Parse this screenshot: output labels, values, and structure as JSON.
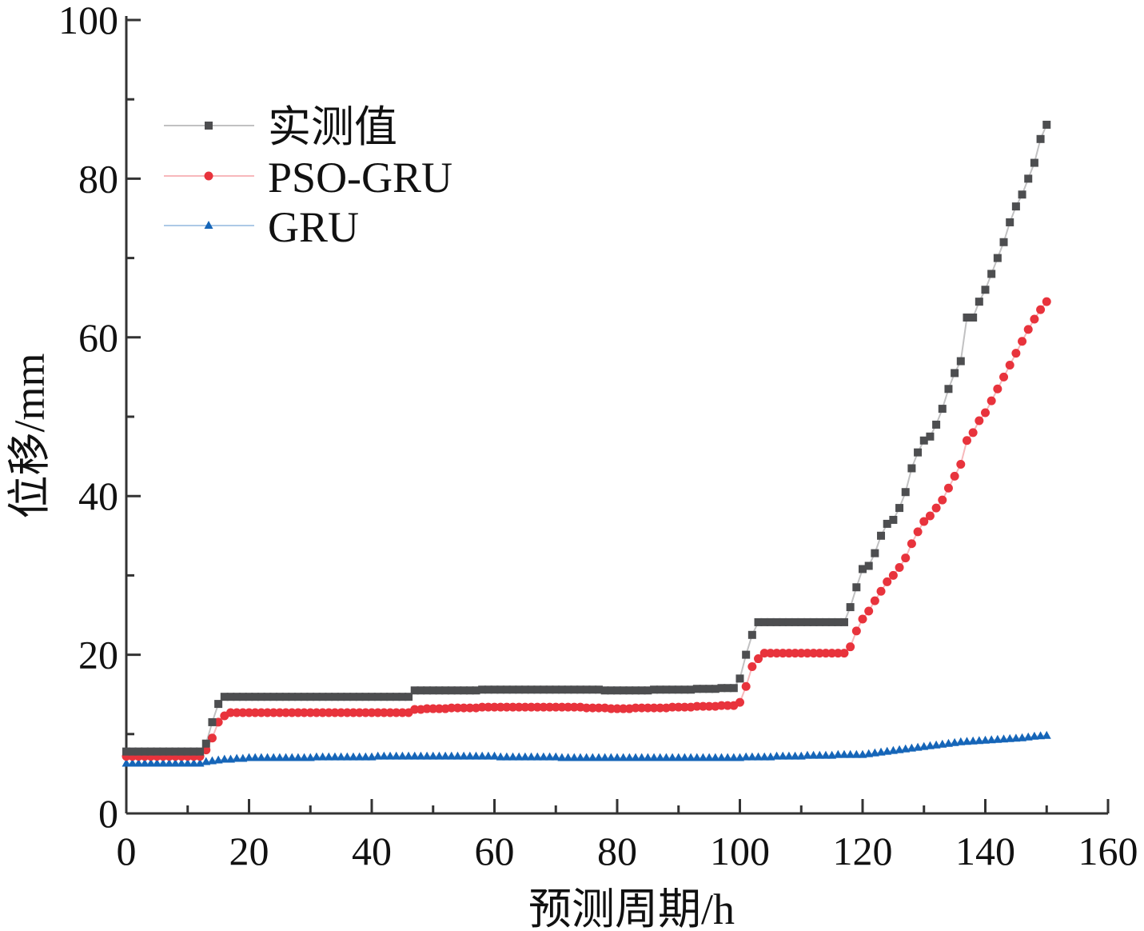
{
  "chart_data": {
    "type": "line",
    "title": "",
    "xlabel": "预测周期/h",
    "ylabel": "位移/mm",
    "xlim": [
      0,
      160
    ],
    "ylim": [
      0,
      100
    ],
    "xticks": [
      "0",
      "20",
      "40",
      "60",
      "80",
      "100",
      "120",
      "140",
      "160"
    ],
    "yticks": [
      "0",
      "20",
      "40",
      "60",
      "80",
      "100"
    ],
    "legend_position": "top-left",
    "x_start": 0,
    "x_step": 1,
    "series": [
      {
        "name": "实测值",
        "color": "#4d4e50",
        "marker": "square",
        "values": [
          7.8,
          7.8,
          7.8,
          7.8,
          7.8,
          7.8,
          7.8,
          7.8,
          7.8,
          7.8,
          7.8,
          7.8,
          7.8,
          8.8,
          11.5,
          13.8,
          14.7,
          14.7,
          14.7,
          14.7,
          14.7,
          14.7,
          14.7,
          14.7,
          14.7,
          14.7,
          14.7,
          14.7,
          14.7,
          14.7,
          14.7,
          14.7,
          14.7,
          14.7,
          14.7,
          14.7,
          14.7,
          14.7,
          14.7,
          14.7,
          14.7,
          14.7,
          14.7,
          14.7,
          14.7,
          14.7,
          14.7,
          15.5,
          15.5,
          15.5,
          15.5,
          15.5,
          15.5,
          15.5,
          15.5,
          15.5,
          15.5,
          15.5,
          15.6,
          15.6,
          15.6,
          15.6,
          15.6,
          15.6,
          15.6,
          15.6,
          15.6,
          15.6,
          15.6,
          15.6,
          15.6,
          15.6,
          15.6,
          15.6,
          15.6,
          15.6,
          15.6,
          15.6,
          15.5,
          15.5,
          15.5,
          15.5,
          15.5,
          15.5,
          15.5,
          15.5,
          15.6,
          15.6,
          15.6,
          15.6,
          15.6,
          15.6,
          15.6,
          15.7,
          15.7,
          15.7,
          15.7,
          15.8,
          15.8,
          15.8,
          17,
          20,
          22.5,
          24.1,
          24.1,
          24.1,
          24.1,
          24.1,
          24.1,
          24.1,
          24.1,
          24.1,
          24.1,
          24.1,
          24.1,
          24.1,
          24.1,
          24.1,
          26,
          28.5,
          30.8,
          31.2,
          32.8,
          35,
          36.5,
          37,
          38.5,
          40.5,
          43.5,
          45.5,
          47,
          47.5,
          49,
          51,
          53.5,
          55.5,
          57,
          62.5,
          62.5,
          64.5,
          66,
          68,
          70,
          72,
          74.5,
          76.5,
          78,
          80,
          82,
          85,
          86.8
        ]
      },
      {
        "name": "PSO-GRU",
        "color": "#e8333c",
        "marker": "circle",
        "values": [
          7.2,
          7.2,
          7.2,
          7.2,
          7.2,
          7.2,
          7.2,
          7.2,
          7.2,
          7.2,
          7.2,
          7.2,
          7.2,
          8,
          9.5,
          11.5,
          12.3,
          12.7,
          12.7,
          12.7,
          12.7,
          12.7,
          12.7,
          12.7,
          12.7,
          12.7,
          12.7,
          12.7,
          12.7,
          12.7,
          12.7,
          12.7,
          12.7,
          12.7,
          12.7,
          12.7,
          12.7,
          12.7,
          12.7,
          12.7,
          12.7,
          12.7,
          12.7,
          12.7,
          12.7,
          12.7,
          12.7,
          13.1,
          13.1,
          13.2,
          13.2,
          13.2,
          13.2,
          13.3,
          13.3,
          13.3,
          13.3,
          13.3,
          13.4,
          13.4,
          13.4,
          13.4,
          13.4,
          13.4,
          13.4,
          13.4,
          13.4,
          13.4,
          13.4,
          13.4,
          13.4,
          13.4,
          13.4,
          13.4,
          13.4,
          13.3,
          13.3,
          13.3,
          13.3,
          13.2,
          13.2,
          13.2,
          13.2,
          13.3,
          13.3,
          13.3,
          13.3,
          13.3,
          13.3,
          13.4,
          13.4,
          13.4,
          13.4,
          13.5,
          13.5,
          13.5,
          13.5,
          13.6,
          13.6,
          13.6,
          14,
          16,
          18.5,
          19.5,
          20.2,
          20.2,
          20.2,
          20.2,
          20.2,
          20.2,
          20.2,
          20.2,
          20.2,
          20.2,
          20.2,
          20.2,
          20.2,
          20.2,
          21,
          23,
          24.5,
          25.5,
          26.8,
          28,
          29.2,
          30,
          31,
          32.2,
          34,
          35.5,
          36.8,
          37.5,
          38.5,
          39.5,
          41,
          42.5,
          44,
          47,
          48,
          49.5,
          50.5,
          52,
          53.5,
          55,
          56.5,
          58,
          59.5,
          61,
          62.3,
          63.5,
          64.5
        ]
      },
      {
        "name": "GRU",
        "color": "#1565b8",
        "marker": "triangle",
        "values": [
          6.3,
          6.3,
          6.3,
          6.3,
          6.3,
          6.3,
          6.3,
          6.3,
          6.3,
          6.3,
          6.3,
          6.3,
          6.3,
          6.5,
          6.6,
          6.7,
          6.8,
          6.8,
          6.9,
          6.9,
          7.0,
          7.0,
          7.0,
          7.0,
          7.0,
          7.0,
          7.0,
          7.0,
          7.0,
          7.0,
          7.0,
          7.1,
          7.1,
          7.1,
          7.1,
          7.1,
          7.1,
          7.1,
          7.1,
          7.1,
          7.1,
          7.2,
          7.2,
          7.2,
          7.2,
          7.2,
          7.2,
          7.2,
          7.2,
          7.2,
          7.2,
          7.2,
          7.2,
          7.2,
          7.2,
          7.2,
          7.2,
          7.2,
          7.2,
          7.2,
          7.2,
          7.1,
          7.1,
          7.1,
          7.1,
          7.1,
          7.1,
          7.1,
          7.1,
          7.1,
          7.1,
          7.0,
          7.0,
          7.0,
          7.0,
          7.0,
          7.0,
          7.0,
          7.0,
          7.0,
          7.0,
          7.0,
          7.0,
          7.0,
          7.0,
          7.0,
          7.0,
          7.0,
          7.0,
          7.0,
          7.0,
          7.0,
          7.0,
          7.0,
          7.0,
          7.0,
          7.0,
          7.0,
          7.0,
          7.0,
          7.0,
          7.1,
          7.1,
          7.1,
          7.1,
          7.1,
          7.2,
          7.2,
          7.2,
          7.2,
          7.2,
          7.3,
          7.3,
          7.3,
          7.3,
          7.3,
          7.4,
          7.4,
          7.4,
          7.4,
          7.4,
          7.5,
          7.6,
          7.7,
          7.8,
          7.9,
          8.0,
          8.1,
          8.2,
          8.3,
          8.4,
          8.5,
          8.6,
          8.7,
          8.8,
          8.9,
          9.0,
          9.05,
          9.1,
          9.15,
          9.2,
          9.25,
          9.3,
          9.35,
          9.4,
          9.45,
          9.5,
          9.6,
          9.7,
          9.75,
          9.8
        ]
      }
    ]
  }
}
